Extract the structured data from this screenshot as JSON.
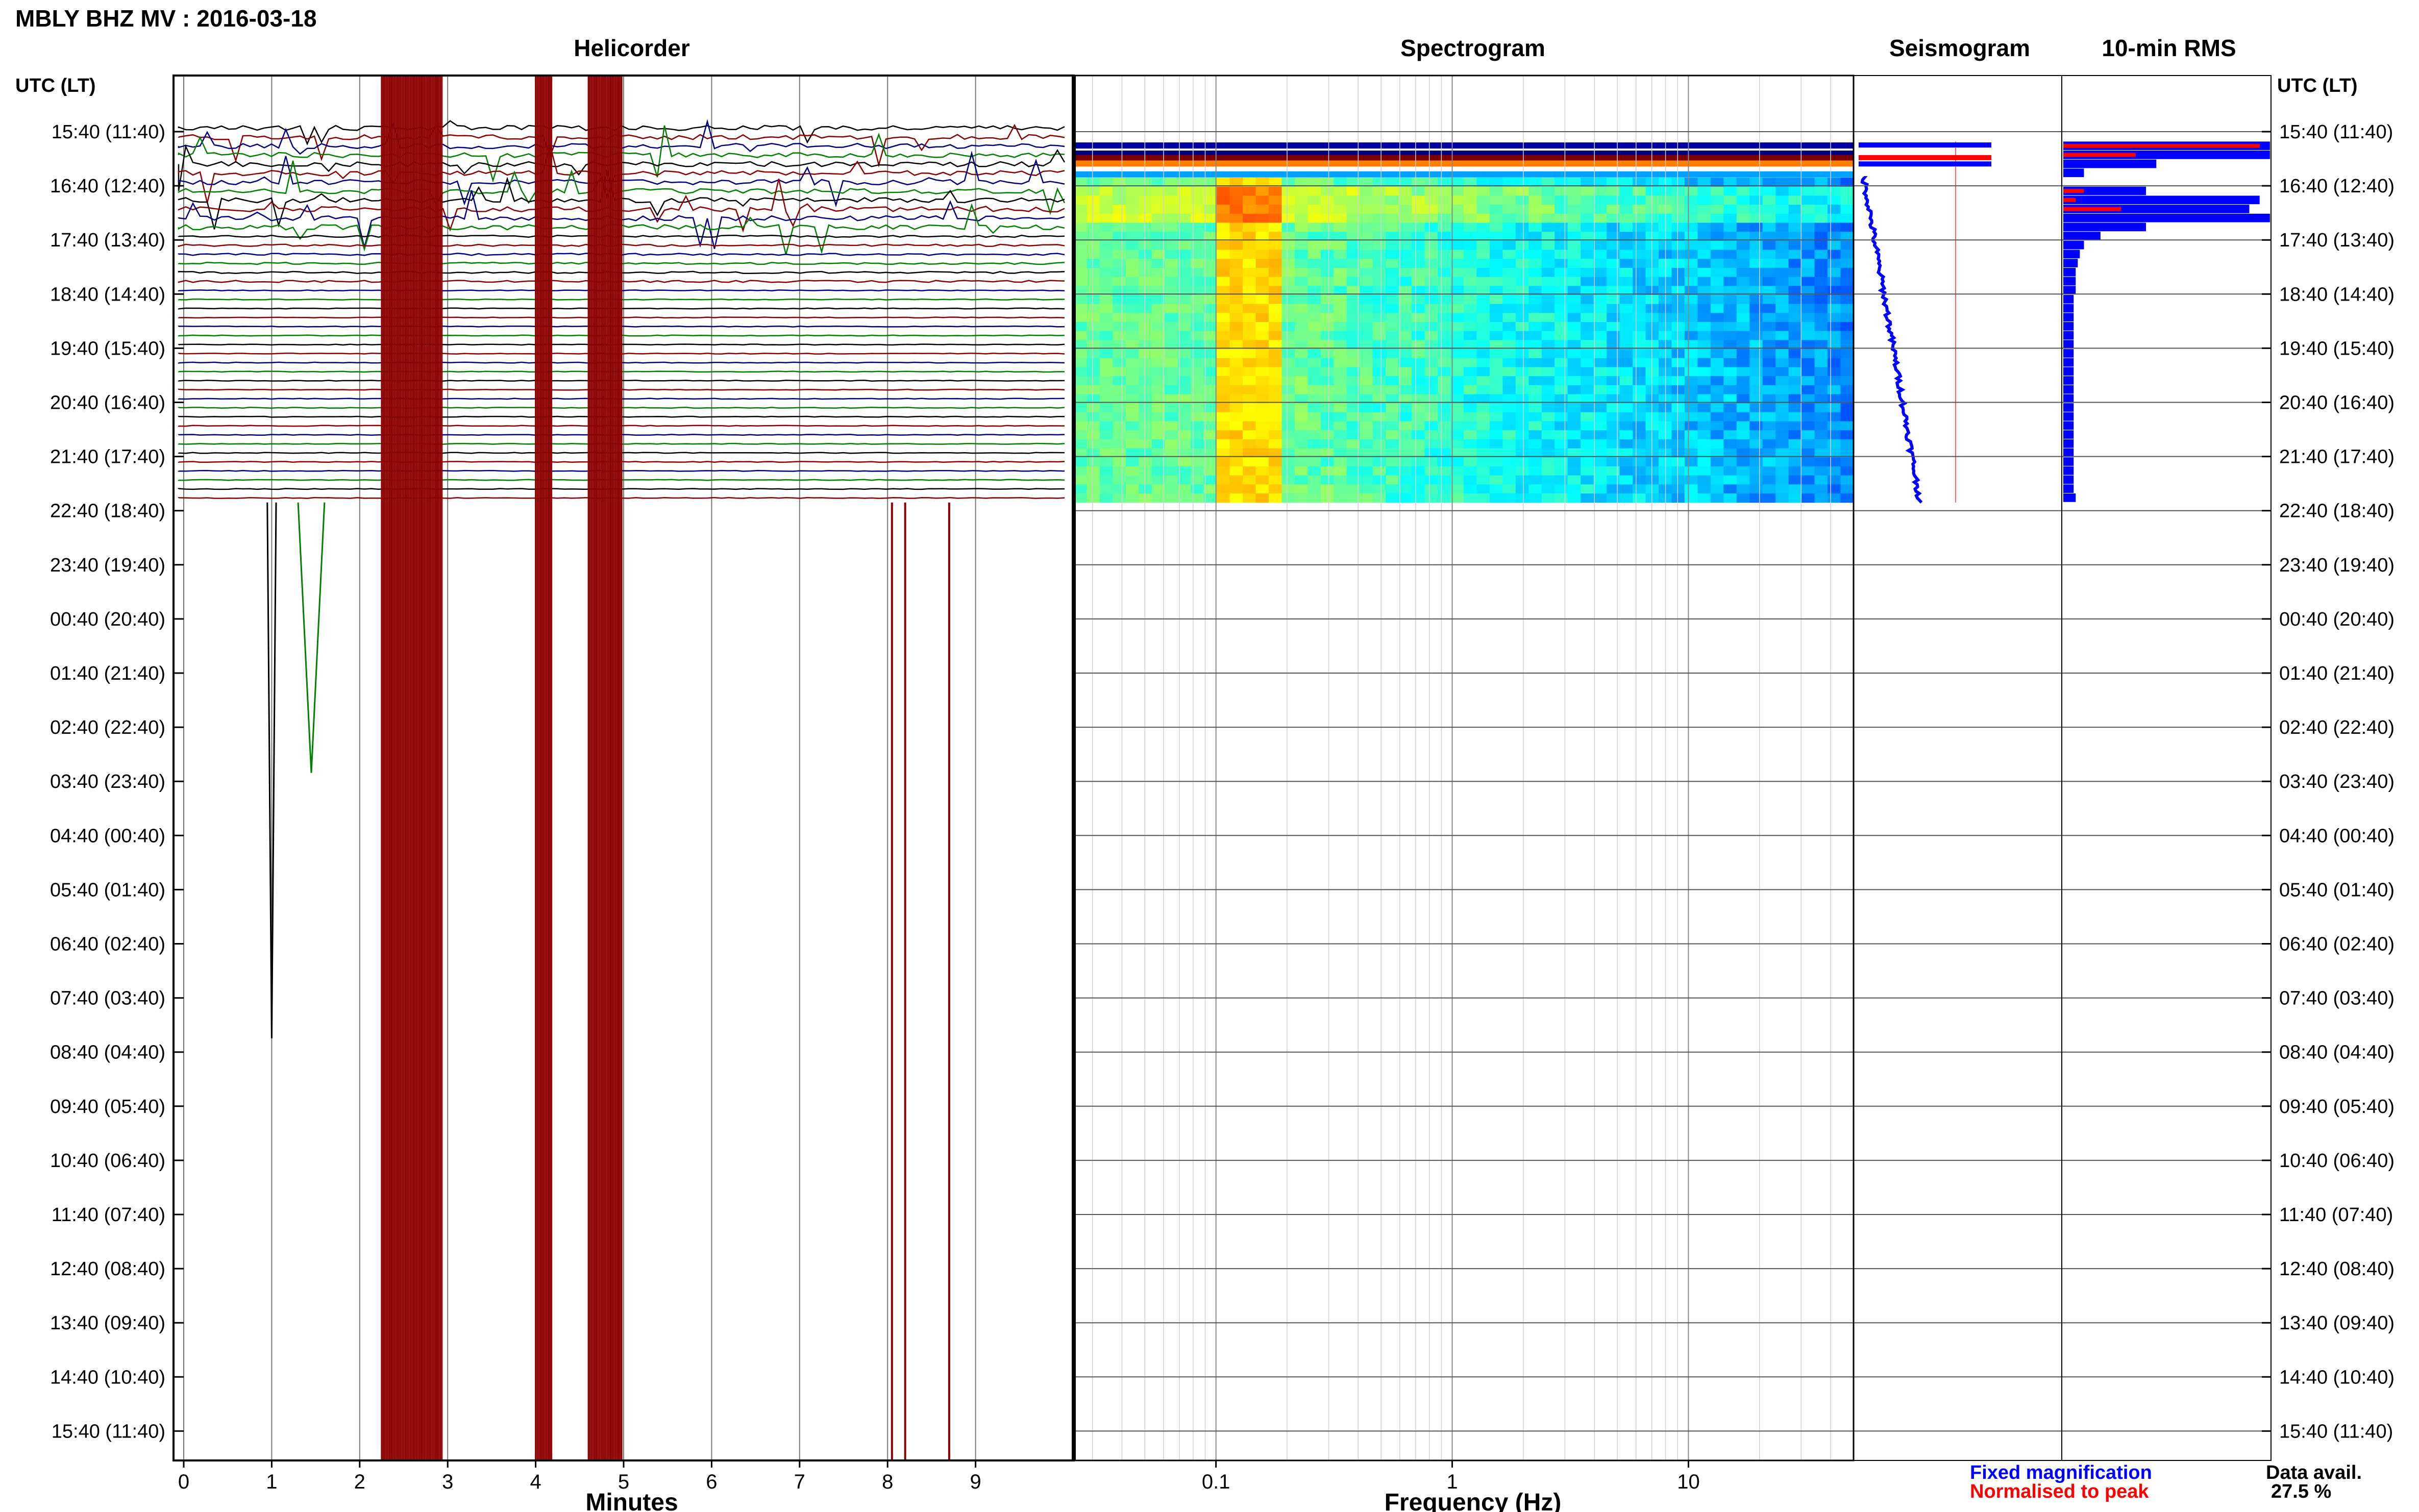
{
  "header": {
    "title": "MBLY BHZ MV : 2016-03-18"
  },
  "panels": {
    "helicorder": "Helicorder",
    "spectrogram": "Spectrogram",
    "seismogram": "Seismogram",
    "rms": "10-min RMS"
  },
  "axis_headers": {
    "left": "UTC (LT)",
    "right": "UTC (LT)"
  },
  "legend": {
    "fixed": "Fixed magnification",
    "normalised": "Normalised to peak"
  },
  "availability": {
    "label": "Data avail.",
    "value": "27.5 %"
  },
  "colors": {
    "frame": "#000000",
    "trace_black": "#000000",
    "trace_blue": "#000080",
    "trace_red": "#8b0000",
    "trace_green": "#008000",
    "rms_blue": "#0000ff",
    "rms_red": "#ff0000",
    "legend_blue": "#0000ff",
    "legend_red": "#ff0000",
    "spectro_low": "#00008b",
    "spectro_high": "#ffff00"
  },
  "chart_data": [
    {
      "type": "line",
      "name": "helicorder",
      "title": "Helicorder",
      "xlabel": "Minutes",
      "xlim": [
        0,
        10
      ],
      "x_ticks": [
        "0",
        "1",
        "2",
        "3",
        "4",
        "5",
        "6",
        "7",
        "8",
        "9"
      ],
      "y_tick_labels": [
        "15:40 (11:40)",
        "16:40 (12:40)",
        "17:40 (13:40)",
        "18:40 (14:40)",
        "19:40 (15:40)",
        "20:40 (16:40)",
        "21:40 (17:40)",
        "22:40 (18:40)",
        "23:40 (19:40)",
        "00:40 (20:40)",
        "01:40 (21:40)",
        "02:40 (22:40)",
        "03:40 (23:40)",
        "04:40 (00:40)",
        "05:40 (01:40)",
        "06:40 (02:40)",
        "07:40 (03:40)",
        "08:40 (04:40)",
        "09:40 (05:40)",
        "10:40 (06:40)",
        "11:40 (07:40)",
        "12:40 (08:40)",
        "13:40 (09:40)",
        "14:40 (10:40)",
        "15:40 (11:40)"
      ],
      "rows_per_hour": 6,
      "rows_with_data": 42,
      "trace_color_cycle": [
        "black",
        "red",
        "blue",
        "green"
      ]
    },
    {
      "type": "heatmap",
      "name": "spectrogram",
      "title": "Spectrogram",
      "xlabel": "Frequency (Hz)",
      "x_scale": "log",
      "xlim": [
        0.025,
        50
      ],
      "x_ticks": [
        0.1,
        1,
        10
      ],
      "x_tick_labels": [
        "0.1",
        "1",
        "10"
      ],
      "rows_with_data": 42,
      "colormap": "jet"
    },
    {
      "type": "line",
      "name": "seismogram",
      "title": "Seismogram",
      "series": [
        "Fixed magnification",
        "Normalised to peak"
      ]
    },
    {
      "type": "bar",
      "name": "rms",
      "title": "10-min RMS",
      "orientation": "horizontal",
      "series": [
        {
          "name": "Fixed magnification",
          "values": [
            0,
            0,
            1,
            1,
            0.45,
            0.1,
            0,
            0.4,
            0.95,
            0.9,
            1,
            0.4,
            0.18,
            0.1,
            0.08,
            0.07,
            0.06,
            0.06,
            0.06,
            0.05,
            0.05,
            0.05,
            0.05,
            0.05,
            0.05,
            0.05,
            0.05,
            0.05,
            0.05,
            0.05,
            0.05,
            0.05,
            0.05,
            0.05,
            0.05,
            0.05,
            0.05,
            0.05,
            0.05,
            0.05,
            0.05,
            0.06
          ]
        },
        {
          "name": "Normalised to peak",
          "values": [
            0,
            0,
            0.95,
            0.35,
            0,
            0,
            0,
            0.1,
            0.06,
            0.28,
            0,
            0,
            0,
            0,
            0,
            0,
            0,
            0,
            0,
            0,
            0,
            0,
            0,
            0,
            0,
            0,
            0,
            0,
            0,
            0,
            0,
            0,
            0,
            0,
            0,
            0,
            0,
            0,
            0,
            0,
            0,
            0
          ]
        }
      ]
    }
  ]
}
